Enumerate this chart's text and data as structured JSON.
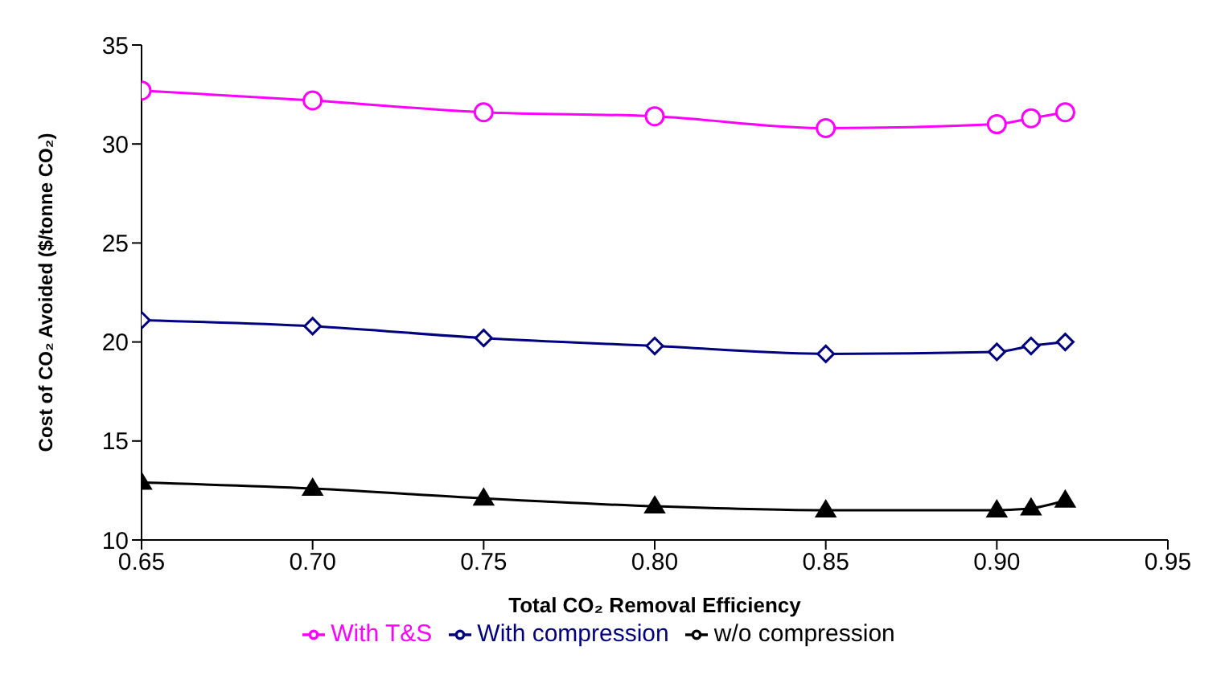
{
  "chart_data": {
    "type": "line",
    "xlabel": "Total CO₂ Removal Efficiency",
    "ylabel": "Cost of CO₂ Avoided ($/tonne CO₂)",
    "xlim": [
      0.65,
      0.95
    ],
    "xticks": [
      {
        "value": 0.65,
        "label": "0.65"
      },
      {
        "value": 0.7,
        "label": "0.70"
      },
      {
        "value": 0.75,
        "label": "0.75"
      },
      {
        "value": 0.8,
        "label": "0.80"
      },
      {
        "value": 0.85,
        "label": "0.85"
      },
      {
        "value": 0.9,
        "label": "0.90"
      },
      {
        "value": 0.95,
        "label": "0.95"
      }
    ],
    "ylim": [
      10,
      35
    ],
    "yticks": [
      10,
      15,
      20,
      25,
      30,
      35
    ],
    "x": [
      0.65,
      0.7,
      0.75,
      0.8,
      0.85,
      0.9,
      0.91,
      0.92
    ],
    "series": [
      {
        "name": "With T&S",
        "color": "#ff00ff",
        "marker": "circle",
        "values": [
          32.7,
          32.2,
          31.6,
          31.4,
          30.8,
          31.0,
          31.3,
          31.6
        ]
      },
      {
        "name": "With compression",
        "color": "#000080",
        "marker": "diamond",
        "values": [
          21.1,
          20.8,
          20.2,
          19.8,
          19.4,
          19.5,
          19.8,
          20.0
        ]
      },
      {
        "name": "w/o compression",
        "color": "#000000",
        "marker": "triangle",
        "values": [
          12.9,
          12.6,
          12.1,
          11.7,
          11.5,
          11.5,
          11.6,
          12.0
        ]
      }
    ],
    "grid": false,
    "legend": "bottom",
    "line_style": "solid"
  }
}
